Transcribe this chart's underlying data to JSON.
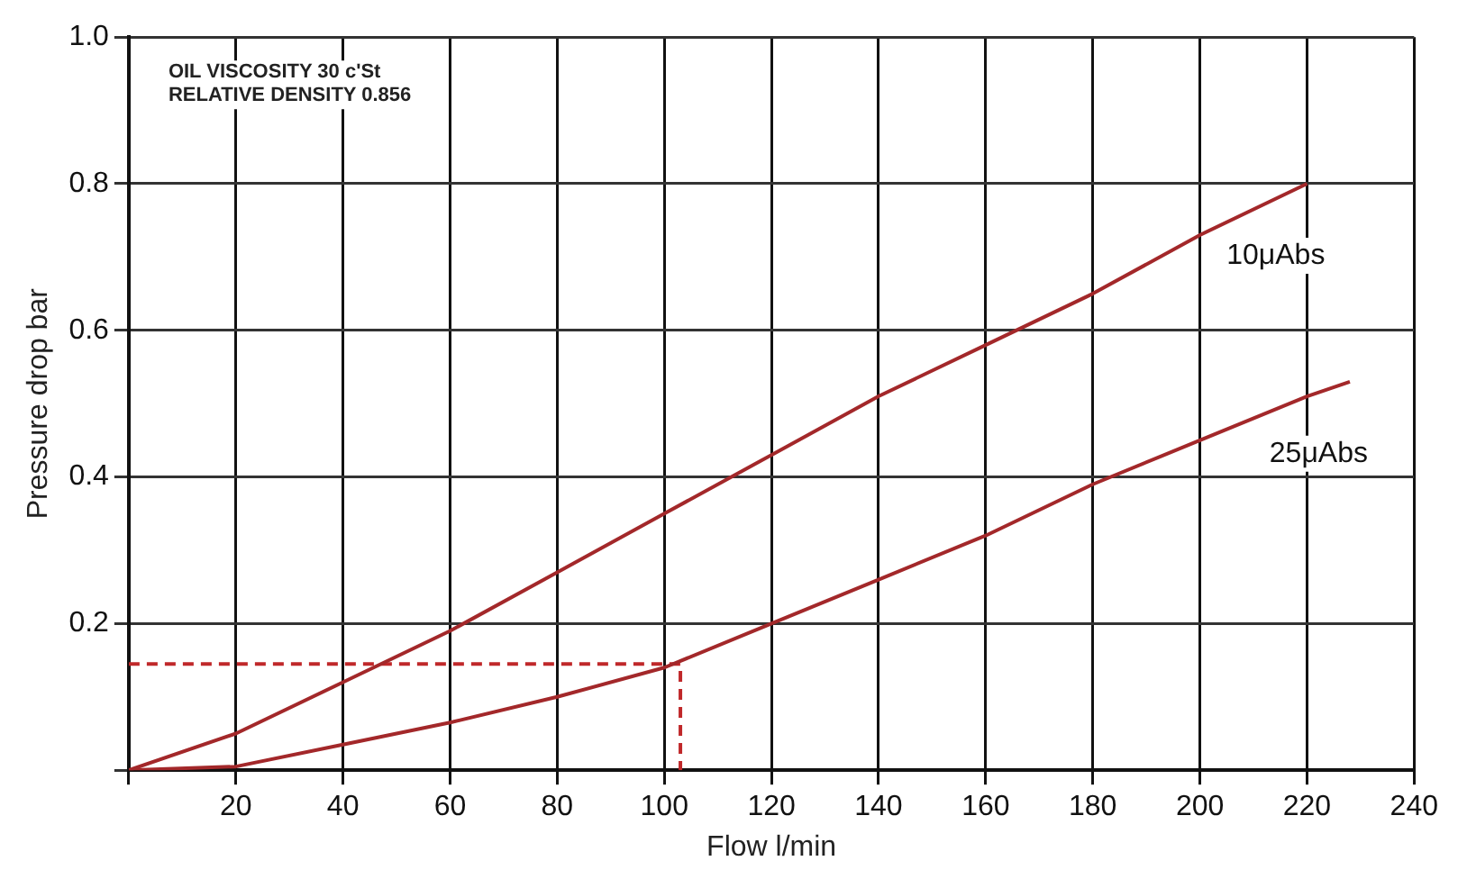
{
  "chart_data": {
    "type": "line",
    "xlabel": "Flow l/min",
    "ylabel": "Pressure drop bar",
    "annotations": [
      "OIL VISCOSITY 30 c'St",
      "RELATIVE DENSITY 0.856"
    ],
    "xlim": [
      0,
      240
    ],
    "xticks": [
      {
        "value": 0,
        "label": null
      },
      20,
      40,
      60,
      80,
      100,
      120,
      140,
      160,
      180,
      200,
      220,
      240
    ],
    "ylim": [
      0,
      1.0
    ],
    "yticks": [
      {
        "value": 0,
        "label": null
      },
      0.2,
      0.4,
      0.6,
      0.8,
      {
        "value": 1,
        "label": "1.0"
      }
    ],
    "grid": true,
    "legend": false,
    "marker": "none",
    "line_style": "solid",
    "series": [
      {
        "name": "10μAbs",
        "color": "#a3282a",
        "x": [
          0,
          20,
          40,
          60,
          80,
          100,
          120,
          140,
          160,
          180,
          200,
          220
        ],
        "values": [
          0,
          0.05,
          0.12,
          0.19,
          0.27,
          0.35,
          0.43,
          0.51,
          0.58,
          0.65,
          0.73,
          0.8
        ]
      },
      {
        "name": "25μAbs",
        "color": "#a3282a",
        "x": [
          0,
          20,
          40,
          60,
          80,
          100,
          120,
          140,
          160,
          180,
          200,
          220,
          228
        ],
        "values": [
          0,
          0.005,
          0.035,
          0.065,
          0.1,
          0.14,
          0.2,
          0.26,
          0.32,
          0.39,
          0.45,
          0.51,
          0.53
        ]
      },
      {
        "color": "#c0282a",
        "line_style": "dashed",
        "x": [
          0,
          103,
          103
        ],
        "values": [
          0.145,
          0.145,
          0
        ]
      }
    ]
  }
}
